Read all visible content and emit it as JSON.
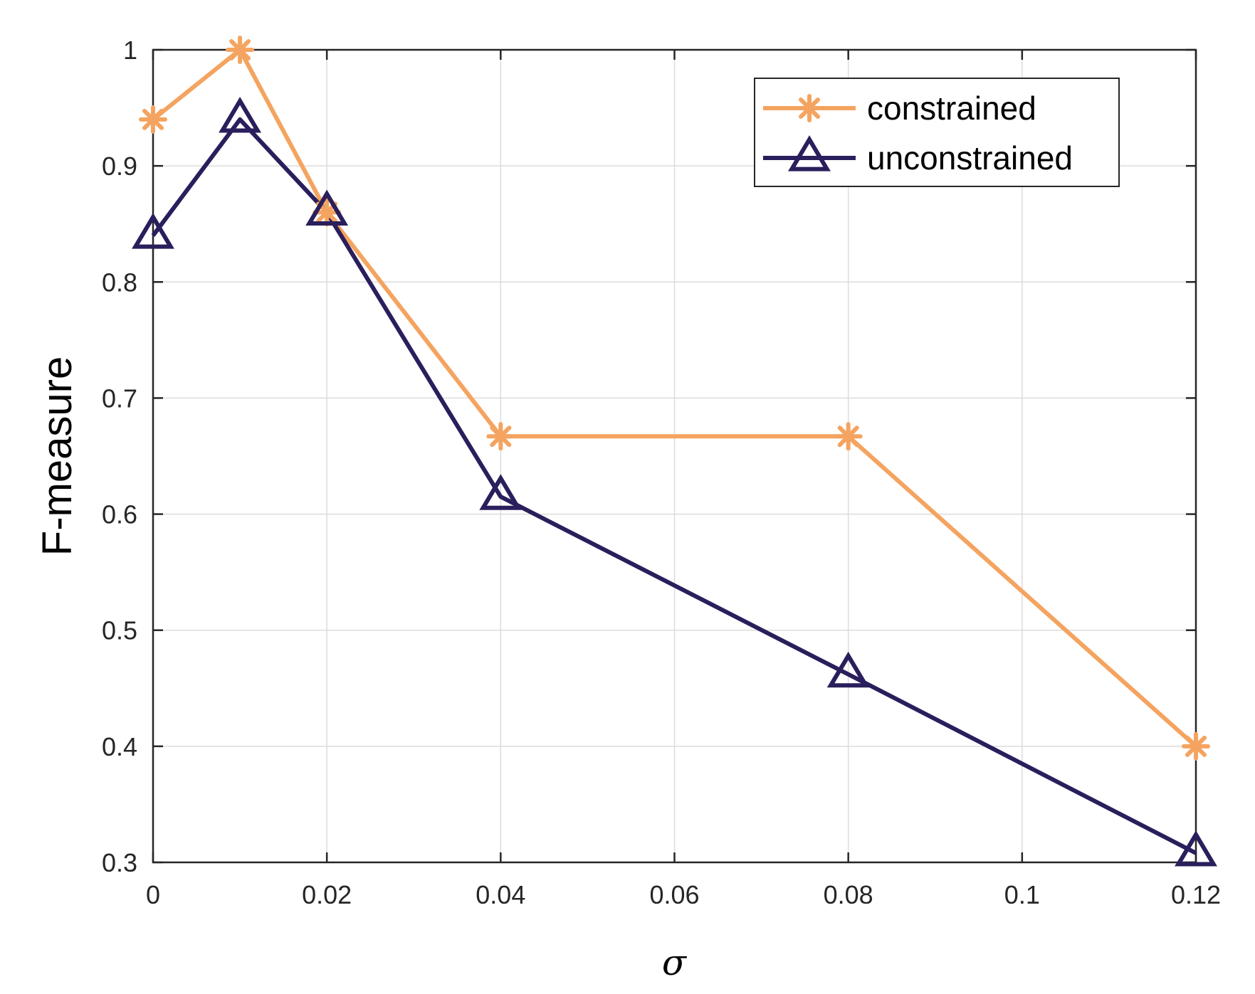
{
  "chart_data": {
    "type": "line",
    "title": "",
    "xlabel": "σ",
    "ylabel": "F-measure",
    "xlim": [
      0,
      0.12
    ],
    "ylim": [
      0.3,
      1
    ],
    "grid": true,
    "legend_position": "top-right",
    "x_ticks": [
      "0",
      "0.02",
      "0.04",
      "0.06",
      "0.08",
      "0.1",
      "0.12"
    ],
    "y_ticks": [
      "0.3",
      "0.4",
      "0.5",
      "0.6",
      "0.7",
      "0.8",
      "0.9",
      "1"
    ],
    "x_tick_values": [
      0,
      0.02,
      0.04,
      0.06,
      0.08,
      0.1,
      0.12
    ],
    "y_tick_values": [
      0.3,
      0.4,
      0.5,
      0.6,
      0.7,
      0.8,
      0.9,
      1.0
    ],
    "series": [
      {
        "name": "constrained",
        "marker": "asterisk",
        "color": "#F4A460",
        "x": [
          0,
          0.01,
          0.02,
          0.04,
          0.08,
          0.12
        ],
        "y": [
          0.94,
          1.0,
          0.86,
          0.667,
          0.667,
          0.4
        ]
      },
      {
        "name": "unconstrained",
        "marker": "triangle",
        "color": "#2A1E5C",
        "x": [
          0,
          0.01,
          0.02,
          0.04,
          0.08,
          0.12
        ],
        "y": [
          0.84,
          0.94,
          0.86,
          0.615,
          0.462,
          0.308
        ]
      }
    ]
  }
}
